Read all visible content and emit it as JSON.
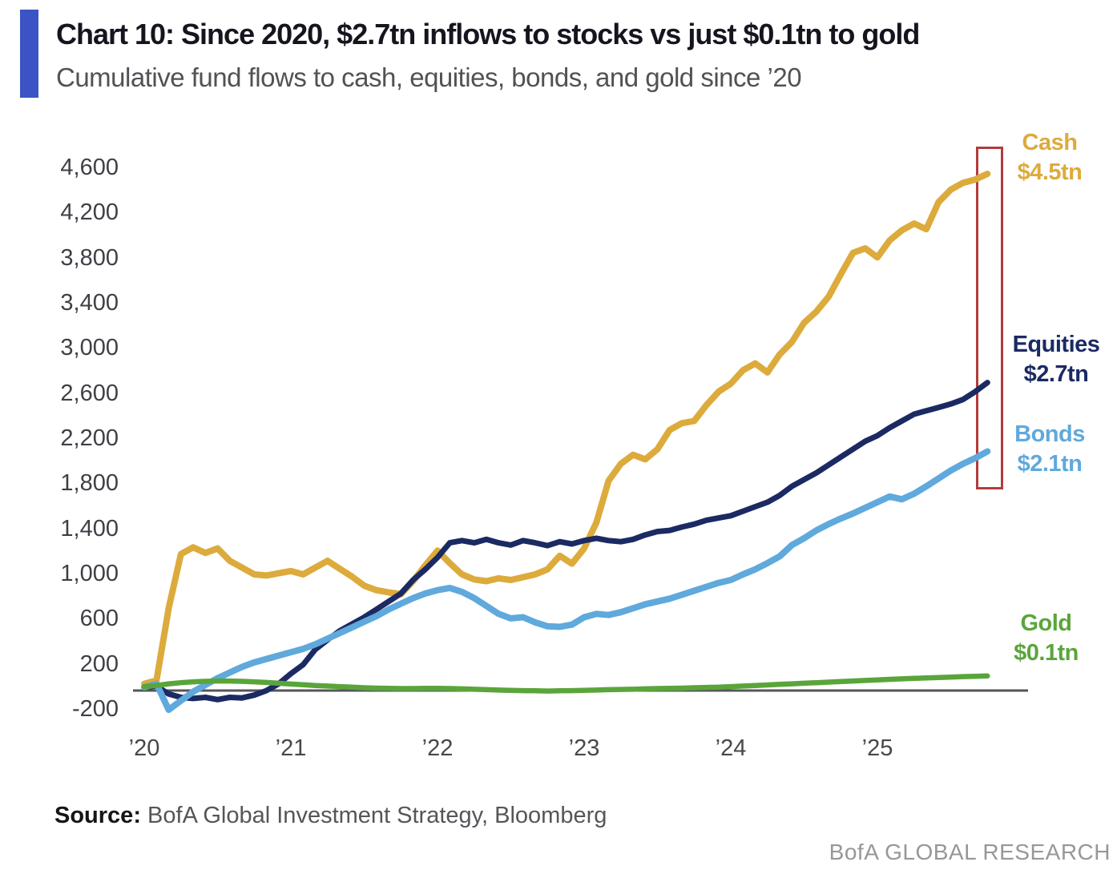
{
  "header": {
    "title": "Chart 10: Since 2020, $2.7tn inflows to stocks vs just $0.1tn to gold",
    "subtitle": "Cumulative fund flows to cash, equities, bonds, and gold since ’20",
    "accent_color": "#3A53C5"
  },
  "chart_data": {
    "type": "line",
    "title": "Chart 10: Since 2020, $2.7tn inflows to stocks vs just $0.1tn to gold",
    "subtitle": "Cumulative fund flows to cash, equities, bonds, and gold since '20",
    "y_unit": "$bn",
    "x_unit": "year, monthly points starting Jan 2020",
    "x_start": 2020.0,
    "x_step": 0.08333,
    "ylim": [
      -200,
      4600
    ],
    "grid": false,
    "legend_position": "right-edge annotations",
    "xtick_labels": [
      "’20",
      "’21",
      "’22",
      "’23",
      "’24",
      "’25"
    ],
    "xtick_values": [
      2020,
      2021,
      2022,
      2023,
      2024,
      2025
    ],
    "ytick_labels": [
      "4,600",
      "4,200",
      "3,800",
      "3,400",
      "3,000",
      "2,600",
      "2,200",
      "1,800",
      "1,400",
      "1,000",
      "600",
      "200",
      "-200"
    ],
    "ytick_values": [
      4600,
      4200,
      3800,
      3400,
      3000,
      2600,
      2200,
      1800,
      1400,
      1000,
      600,
      200,
      -200
    ],
    "series": [
      {
        "name": "Cash",
        "end_label": "$4.5tn",
        "color": "#DCAB3C",
        "values": [
          30,
          60,
          700,
          1180,
          1240,
          1190,
          1230,
          1120,
          1060,
          1000,
          990,
          1010,
          1030,
          1000,
          1060,
          1120,
          1050,
          980,
          900,
          860,
          840,
          825,
          940,
          1080,
          1210,
          1100,
          1000,
          955,
          940,
          965,
          950,
          975,
          1000,
          1045,
          1165,
          1095,
          1230,
          1460,
          1830,
          1980,
          2060,
          2020,
          2110,
          2280,
          2340,
          2360,
          2500,
          2620,
          2690,
          2810,
          2870,
          2790,
          2950,
          3060,
          3230,
          3330,
          3460,
          3660,
          3850,
          3890,
          3810,
          3960,
          4050,
          4110,
          4060,
          4300,
          4410,
          4470,
          4500,
          4550
        ]
      },
      {
        "name": "Equities",
        "end_label": "$2.7tn",
        "color": "#1B2A63",
        "values": [
          0,
          10,
          -60,
          -90,
          -100,
          -90,
          -110,
          -90,
          -95,
          -70,
          -30,
          30,
          120,
          200,
          335,
          420,
          500,
          560,
          620,
          690,
          760,
          830,
          950,
          1045,
          1150,
          1280,
          1300,
          1280,
          1310,
          1280,
          1260,
          1300,
          1280,
          1255,
          1290,
          1270,
          1300,
          1320,
          1300,
          1290,
          1310,
          1350,
          1380,
          1390,
          1420,
          1445,
          1480,
          1500,
          1520,
          1560,
          1600,
          1640,
          1700,
          1780,
          1840,
          1900,
          1970,
          2040,
          2110,
          2180,
          2230,
          2300,
          2360,
          2420,
          2450,
          2480,
          2510,
          2550,
          2620,
          2700
        ]
      },
      {
        "name": "Bonds",
        "end_label": "$2.1tn",
        "color": "#5FA9DC",
        "values": [
          0,
          30,
          -200,
          -120,
          -40,
          20,
          80,
          130,
          180,
          220,
          250,
          280,
          310,
          340,
          380,
          430,
          480,
          530,
          580,
          630,
          690,
          740,
          790,
          830,
          860,
          880,
          845,
          790,
          720,
          650,
          610,
          620,
          575,
          540,
          535,
          555,
          620,
          650,
          640,
          665,
          700,
          735,
          760,
          785,
          820,
          855,
          890,
          925,
          950,
          1000,
          1045,
          1100,
          1160,
          1260,
          1320,
          1390,
          1445,
          1495,
          1540,
          1590,
          1640,
          1690,
          1665,
          1715,
          1780,
          1850,
          1920,
          1980,
          2030,
          2090
        ]
      },
      {
        "name": "Gold",
        "end_label": "$0.1tn",
        "color": "#5AA53B",
        "values": [
          5,
          15,
          30,
          40,
          48,
          52,
          55,
          55,
          52,
          48,
          42,
          35,
          28,
          22,
          15,
          10,
          5,
          0,
          -5,
          -8,
          -10,
          -12,
          -12,
          -10,
          -10,
          -12,
          -15,
          -18,
          -22,
          -25,
          -28,
          -30,
          -32,
          -34,
          -32,
          -30,
          -28,
          -25,
          -22,
          -20,
          -18,
          -15,
          -12,
          -10,
          -8,
          -5,
          -2,
          0,
          5,
          10,
          15,
          20,
          25,
          30,
          35,
          40,
          45,
          50,
          55,
          60,
          65,
          70,
          74,
          78,
          82,
          86,
          90,
          94,
          97,
          100
        ]
      }
    ],
    "annotations": {
      "highlight_box": "red rectangle over latest data at right edge",
      "highlight_box_color": "#B23C3C"
    }
  },
  "footer": {
    "source_label": "Source:",
    "source_text": " BofA Global Investment Strategy, Bloomberg",
    "watermark": "BofA GLOBAL RESEARCH"
  }
}
